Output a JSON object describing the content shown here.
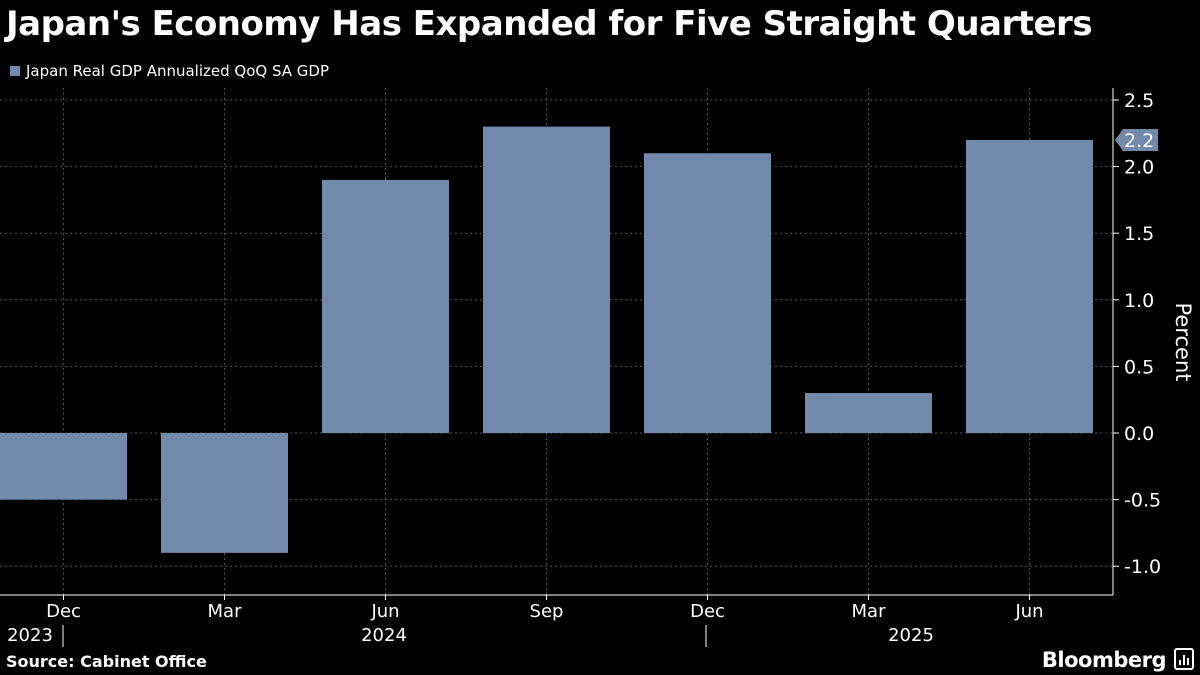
{
  "header": {
    "title": "Japan's Economy Has Expanded for Five Straight Quarters"
  },
  "legend": {
    "label": "Japan Real GDP Annualized QoQ SA GDP"
  },
  "footer": {
    "source": "Source: Cabinet Office",
    "brand": "Bloomberg"
  },
  "colors": {
    "bar": "#7189ab",
    "background": "#000000",
    "grid": "#555555",
    "text": "#ffffff"
  },
  "chart_data": {
    "type": "bar",
    "categories": [
      "Dec",
      "Mar",
      "Jun",
      "Sep",
      "Dec",
      "Mar",
      "Jun"
    ],
    "years": [
      {
        "label": "2023",
        "at_category": 0
      },
      {
        "label": "2024",
        "at_category": 2
      },
      {
        "label": "2025",
        "at_category": 5
      }
    ],
    "series": [
      {
        "name": "Japan Real GDP Annualized QoQ SA GDP",
        "values": [
          -0.5,
          -0.9,
          1.9,
          2.3,
          2.1,
          0.3,
          2.2
        ]
      }
    ],
    "ylabel": "Percent",
    "ylim": [
      -1.2,
      2.5
    ],
    "yticks": [
      "2.5",
      "2.0",
      "1.5",
      "1.0",
      "0.5",
      "0.0",
      "-0.5",
      "-1.0"
    ],
    "ytick_values": [
      2.5,
      2.0,
      1.5,
      1.0,
      0.5,
      0.0,
      -0.5,
      -1.0
    ],
    "last_value_label": "2.2",
    "y_axis_position": "right",
    "grid": true
  }
}
